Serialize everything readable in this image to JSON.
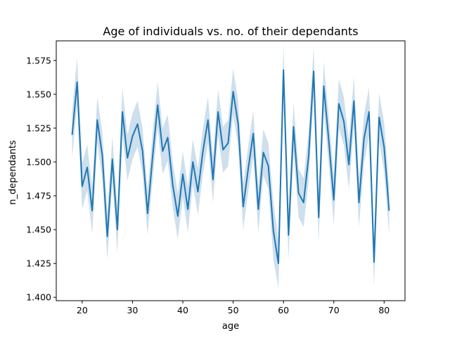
{
  "chart_data": {
    "type": "line",
    "title": "Age of individuals vs. no. of their dependants",
    "xlabel": "age",
    "ylabel": "n_dependants",
    "xlim": [
      14.85,
      84.15
    ],
    "ylim": [
      1.3975,
      1.5895
    ],
    "xticks": [
      20,
      30,
      40,
      50,
      60,
      70,
      80
    ],
    "yticks": [
      1.4,
      1.425,
      1.45,
      1.475,
      1.5,
      1.525,
      1.55,
      1.575
    ],
    "xtick_labels": [
      "20",
      "30",
      "40",
      "50",
      "60",
      "70",
      "80"
    ],
    "ytick_labels": [
      "1.400",
      "1.425",
      "1.450",
      "1.475",
      "1.500",
      "1.525",
      "1.550",
      "1.575"
    ],
    "grid": false,
    "legend": "none",
    "colors": {
      "line": "#1f77b4",
      "band": "#a6c4de"
    },
    "series": [
      {
        "x": [
          18,
          19,
          20,
          21,
          22,
          23,
          24,
          25,
          26,
          27,
          28,
          29,
          30,
          31,
          32,
          33,
          34,
          35,
          36,
          37,
          38,
          39,
          40,
          41,
          42,
          43,
          44,
          45,
          46,
          47,
          48,
          49,
          50,
          51,
          52,
          53,
          54,
          55,
          56,
          57,
          58,
          59,
          60,
          61,
          62,
          63,
          64,
          65,
          66,
          67,
          68,
          69,
          70,
          71,
          72,
          73,
          74,
          75,
          76,
          77,
          78,
          79,
          80,
          81
        ],
        "y": [
          1.52,
          1.559,
          1.482,
          1.496,
          1.464,
          1.531,
          1.505,
          1.445,
          1.502,
          1.45,
          1.537,
          1.503,
          1.519,
          1.528,
          1.508,
          1.462,
          1.504,
          1.542,
          1.508,
          1.518,
          1.483,
          1.46,
          1.491,
          1.465,
          1.5,
          1.478,
          1.508,
          1.531,
          1.487,
          1.537,
          1.509,
          1.514,
          1.552,
          1.528,
          1.467,
          1.495,
          1.521,
          1.465,
          1.507,
          1.497,
          1.449,
          1.425,
          1.568,
          1.446,
          1.526,
          1.477,
          1.47,
          1.504,
          1.567,
          1.459,
          1.556,
          1.516,
          1.472,
          1.543,
          1.53,
          1.498,
          1.545,
          1.47,
          1.517,
          1.537,
          1.426,
          1.533,
          1.511,
          1.464
        ],
        "ci_lower": [
          1.503,
          1.542,
          1.465,
          1.479,
          1.447,
          1.514,
          1.488,
          1.428,
          1.485,
          1.433,
          1.52,
          1.486,
          1.502,
          1.511,
          1.491,
          1.446,
          1.487,
          1.525,
          1.491,
          1.501,
          1.466,
          1.443,
          1.474,
          1.448,
          1.483,
          1.461,
          1.491,
          1.514,
          1.47,
          1.52,
          1.492,
          1.497,
          1.535,
          1.511,
          1.45,
          1.478,
          1.504,
          1.448,
          1.49,
          1.48,
          1.428,
          1.407,
          1.549,
          1.428,
          1.508,
          1.459,
          1.452,
          1.486,
          1.549,
          1.441,
          1.538,
          1.498,
          1.454,
          1.525,
          1.512,
          1.48,
          1.527,
          1.452,
          1.499,
          1.519,
          1.408,
          1.515,
          1.493,
          1.446
        ],
        "ci_upper": [
          1.537,
          1.577,
          1.499,
          1.513,
          1.481,
          1.548,
          1.522,
          1.462,
          1.519,
          1.467,
          1.555,
          1.52,
          1.536,
          1.545,
          1.525,
          1.479,
          1.521,
          1.559,
          1.525,
          1.535,
          1.5,
          1.477,
          1.508,
          1.482,
          1.517,
          1.495,
          1.525,
          1.548,
          1.504,
          1.554,
          1.526,
          1.531,
          1.569,
          1.545,
          1.484,
          1.512,
          1.538,
          1.482,
          1.524,
          1.514,
          1.47,
          1.443,
          1.587,
          1.464,
          1.544,
          1.495,
          1.488,
          1.522,
          1.585,
          1.477,
          1.574,
          1.534,
          1.49,
          1.561,
          1.548,
          1.516,
          1.563,
          1.488,
          1.535,
          1.555,
          1.444,
          1.551,
          1.529,
          1.482
        ]
      }
    ]
  }
}
